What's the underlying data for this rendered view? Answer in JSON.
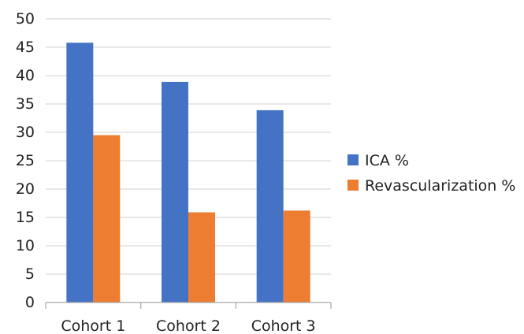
{
  "chart_data": {
    "type": "bar",
    "title": "",
    "xlabel": "",
    "ylabel": "",
    "categories": [
      "Cohort 1",
      "Cohort 2",
      "Cohort 3"
    ],
    "series": [
      {
        "name": "ICA %",
        "color": "#4472c4",
        "values": [
          45.8,
          38.9,
          33.9
        ]
      },
      {
        "name": "Revascularization %",
        "color": "#ed7d31",
        "values": [
          29.5,
          15.9,
          16.2
        ]
      }
    ],
    "ylim": [
      0,
      50
    ],
    "yticks": [
      "0",
      "5",
      "10",
      "15",
      "20",
      "25",
      "30",
      "35",
      "40",
      "45",
      "50"
    ],
    "grid": true,
    "legend_position": "right"
  }
}
